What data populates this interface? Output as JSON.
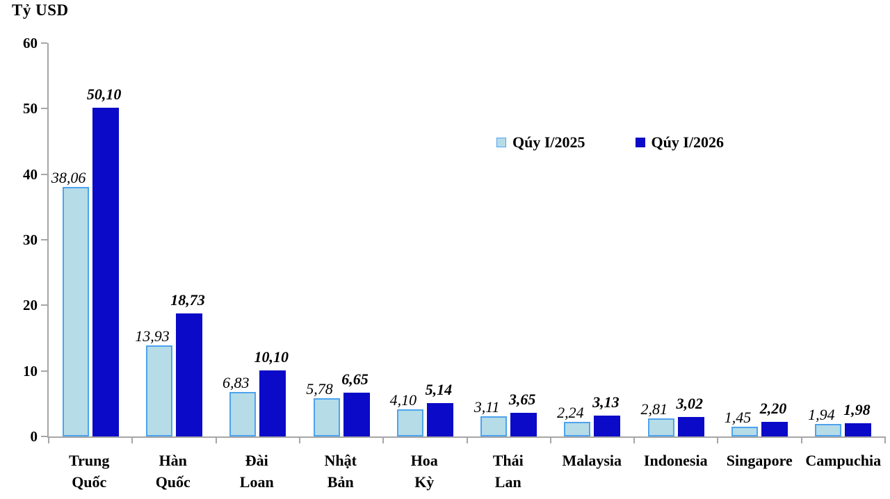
{
  "title": "Tỷ USD",
  "legend": {
    "items": [
      {
        "label": "Qúy I/2025"
      },
      {
        "label": "Qúy I/2026"
      }
    ]
  },
  "chart_data": {
    "type": "bar",
    "title": "",
    "ylabel": "Tỷ USD",
    "xlabel": "",
    "ylim": [
      0,
      60
    ],
    "yticks": [
      0,
      10,
      20,
      30,
      40,
      50,
      60
    ],
    "grid": false,
    "legend_position": "top-right-inside",
    "decimal_separator": ",",
    "axis_color": "#a6a6a6",
    "categories": [
      "Trung Quốc",
      "Hàn Quốc",
      "Đài Loan",
      "Nhật Bản",
      "Hoa Kỳ",
      "Thái Lan",
      "Malaysia",
      "Indonesia",
      "Singapore",
      "Campuchia"
    ],
    "series": [
      {
        "name": "Qúy I/2025",
        "values": [
          38.06,
          13.93,
          6.83,
          5.78,
          4.1,
          3.11,
          2.24,
          2.81,
          1.45,
          1.94
        ],
        "labels": [
          "38,06",
          "13,93",
          "6,83",
          "5,78",
          "4,10",
          "3,11",
          "2,24",
          "2,81",
          "1,45",
          "1,94"
        ],
        "fill": "#b6dce8",
        "border": "#4da3ee"
      },
      {
        "name": "Qúy I/2026",
        "values": [
          50.1,
          18.73,
          10.1,
          6.65,
          5.14,
          3.65,
          3.13,
          3.02,
          2.2,
          1.98
        ],
        "labels": [
          "50,10",
          "18,73",
          "10,10",
          "6,65",
          "5,14",
          "3,65",
          "3,13",
          "3,02",
          "2,20",
          "1,98"
        ],
        "fill": "#0a0ac8",
        "border": "#0a0ac8"
      }
    ]
  }
}
